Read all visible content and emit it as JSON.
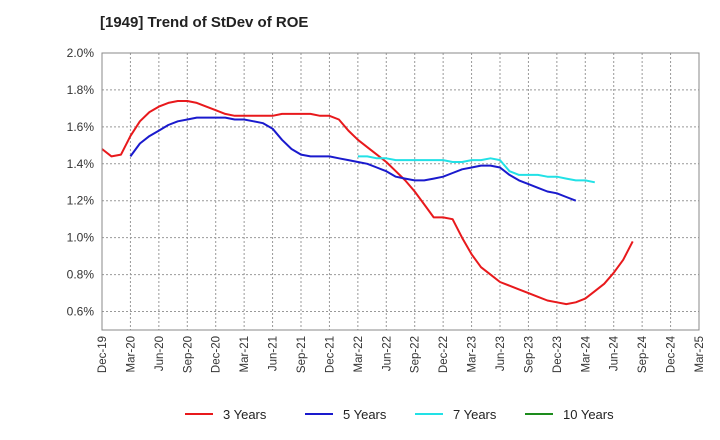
{
  "chart_data": {
    "type": "line",
    "title": "[1949]  Trend of StDev of ROE",
    "xlabel": "",
    "ylabel": "",
    "x_ticks": [
      "Dec-19",
      "Mar-20",
      "Jun-20",
      "Sep-20",
      "Dec-20",
      "Mar-21",
      "Jun-21",
      "Sep-21",
      "Dec-21",
      "Mar-22",
      "Jun-22",
      "Sep-22",
      "Dec-22",
      "Mar-23",
      "Jun-23",
      "Sep-23",
      "Dec-23",
      "Mar-24",
      "Jun-24",
      "Sep-24",
      "Dec-24",
      "Mar-25"
    ],
    "y_ticks": [
      "0.6%",
      "0.8%",
      "1.0%",
      "1.2%",
      "1.4%",
      "1.6%",
      "1.8%",
      "2.0%"
    ],
    "ylim": [
      0.5,
      2.0
    ],
    "grid": true,
    "legend_position": "bottom",
    "series": [
      {
        "name": "3 Years",
        "color": "#e8191c",
        "start": "Dec-19",
        "values": [
          1.48,
          1.44,
          1.45,
          1.55,
          1.63,
          1.68,
          1.71,
          1.73,
          1.74,
          1.74,
          1.73,
          1.71,
          1.69,
          1.67,
          1.66,
          1.66,
          1.66,
          1.66,
          1.66,
          1.67,
          1.67,
          1.67,
          1.67,
          1.66,
          1.66,
          1.64,
          1.58,
          1.53,
          1.49,
          1.45,
          1.41,
          1.36,
          1.31,
          1.25,
          1.18,
          1.11,
          1.11,
          1.1,
          1.0,
          0.91,
          0.84,
          0.8,
          0.76,
          0.74,
          0.72,
          0.7,
          0.68,
          0.66,
          0.65,
          0.64,
          0.65,
          0.67,
          0.71,
          0.75,
          0.81,
          0.88,
          0.98
        ]
      },
      {
        "name": "5 Years",
        "color": "#1a1acd",
        "start": "Mar-20",
        "values": [
          1.44,
          1.51,
          1.55,
          1.58,
          1.61,
          1.63,
          1.64,
          1.65,
          1.65,
          1.65,
          1.65,
          1.64,
          1.64,
          1.63,
          1.62,
          1.59,
          1.53,
          1.48,
          1.45,
          1.44,
          1.44,
          1.44,
          1.43,
          1.42,
          1.41,
          1.4,
          1.38,
          1.36,
          1.33,
          1.32,
          1.31,
          1.31,
          1.32,
          1.33,
          1.35,
          1.37,
          1.38,
          1.39,
          1.39,
          1.38,
          1.34,
          1.31,
          1.29,
          1.27,
          1.25,
          1.24,
          1.22,
          1.2
        ]
      },
      {
        "name": "7 Years",
        "color": "#22e1e6",
        "start": "Mar-22",
        "values": [
          1.44,
          1.44,
          1.43,
          1.43,
          1.42,
          1.42,
          1.42,
          1.42,
          1.42,
          1.42,
          1.41,
          1.41,
          1.42,
          1.42,
          1.43,
          1.42,
          1.36,
          1.34,
          1.34,
          1.34,
          1.33,
          1.33,
          1.32,
          1.31,
          1.31,
          1.3
        ]
      },
      {
        "name": "10 Years",
        "color": "#1d8c1d",
        "start": "Dec-24",
        "values": []
      }
    ]
  }
}
